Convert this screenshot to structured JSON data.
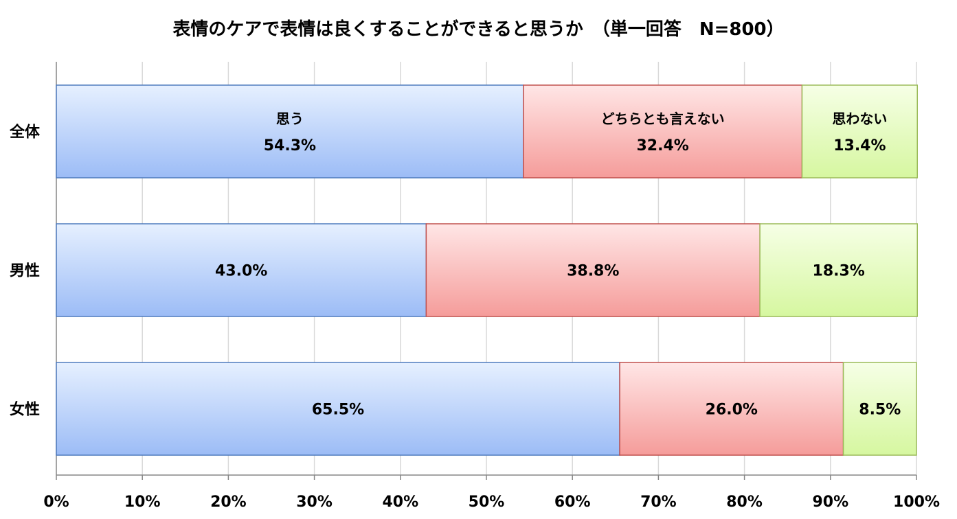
{
  "chart_data": {
    "type": "bar",
    "orientation": "horizontal",
    "stacked": true,
    "title": "表情のケアで表情は良くすることができると思うか　（単一回答　N=800）",
    "categories": [
      "全体",
      "男性",
      "女性"
    ],
    "series": [
      {
        "name": "思う",
        "values": [
          54.3,
          43.0,
          65.5
        ],
        "labels": [
          "54.3%",
          "43.0%",
          "65.5%"
        ],
        "color_top": "#e6f0ff",
        "color_bottom": "#9cbcf6",
        "border": "#4f7bbd"
      },
      {
        "name": "どちらとも言えない",
        "values": [
          32.4,
          38.8,
          26.0
        ],
        "labels": [
          "32.4%",
          "38.8%",
          "26.0%"
        ],
        "color_top": "#ffe6e6",
        "color_bottom": "#f59c9a",
        "border": "#c0504d"
      },
      {
        "name": "思わない",
        "values": [
          13.4,
          18.3,
          8.5
        ],
        "labels": [
          "13.4%",
          "18.3%",
          "8.5%"
        ],
        "color_top": "#f6ffe6",
        "color_bottom": "#d6f7a0",
        "border": "#9bbb59"
      }
    ],
    "series_names_shown_in_first_bar": true,
    "xlim": [
      0,
      100
    ],
    "x_ticks": [
      "0%",
      "10%",
      "20%",
      "30%",
      "40%",
      "50%",
      "60%",
      "70%",
      "80%",
      "90%",
      "100%"
    ],
    "grid": true
  }
}
